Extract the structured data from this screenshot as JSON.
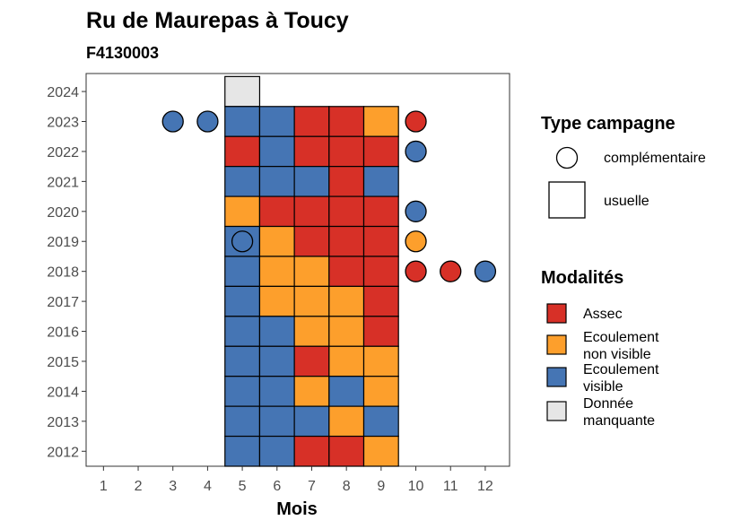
{
  "chart_data": {
    "type": "heatmap",
    "title": "Ru de Maurepas à Toucy",
    "subtitle": "F4130003",
    "xlabel": "Mois",
    "ylabel": "",
    "x_ticks": [
      "1",
      "2",
      "3",
      "4",
      "5",
      "6",
      "7",
      "8",
      "9",
      "10",
      "11",
      "12"
    ],
    "y_ticks": [
      "2012",
      "2013",
      "2014",
      "2015",
      "2016",
      "2017",
      "2018",
      "2019",
      "2020",
      "2021",
      "2022",
      "2023",
      "2024"
    ],
    "xlim": [
      0.5,
      12.7
    ],
    "ylim": [
      2011.5,
      2024.6
    ],
    "colors": {
      "Assec": "#d73027",
      "Ecoulement non visible": "#fd9f2c",
      "Ecoulement visible": "#4575b4",
      "Donnée manquante": "#e6e6e6"
    },
    "legend_type": {
      "title": "Type campagne",
      "items": [
        {
          "label": "complémentaire",
          "shape": "circle"
        },
        {
          "label": "usuelle",
          "shape": "square"
        }
      ]
    },
    "legend_modalites": {
      "title": "Modalités",
      "items": [
        {
          "key": "Assec",
          "lines": [
            "Assec"
          ]
        },
        {
          "key": "Ecoulement non visible",
          "lines": [
            "Ecoulement",
            "non visible"
          ]
        },
        {
          "key": "Ecoulement visible",
          "lines": [
            "Ecoulement",
            "visible"
          ]
        },
        {
          "key": "Donnée manquante",
          "lines": [
            "Donnée",
            "manquante"
          ]
        }
      ]
    },
    "usuelle": [
      {
        "year": 2024,
        "months": {
          "5": "Donnée manquante"
        }
      },
      {
        "year": 2023,
        "months": {
          "5": "Ecoulement visible",
          "6": "Ecoulement visible",
          "7": "Assec",
          "8": "Assec",
          "9": "Ecoulement non visible"
        }
      },
      {
        "year": 2022,
        "months": {
          "5": "Assec",
          "6": "Ecoulement visible",
          "7": "Assec",
          "8": "Assec",
          "9": "Assec"
        }
      },
      {
        "year": 2021,
        "months": {
          "5": "Ecoulement visible",
          "6": "Ecoulement visible",
          "7": "Ecoulement visible",
          "8": "Assec",
          "9": "Ecoulement visible"
        }
      },
      {
        "year": 2020,
        "months": {
          "5": "Ecoulement non visible",
          "6": "Assec",
          "7": "Assec",
          "8": "Assec",
          "9": "Assec"
        }
      },
      {
        "year": 2019,
        "months": {
          "5": "Ecoulement visible",
          "6": "Ecoulement non visible",
          "7": "Assec",
          "8": "Assec",
          "9": "Assec"
        }
      },
      {
        "year": 2018,
        "months": {
          "5": "Ecoulement visible",
          "6": "Ecoulement non visible",
          "7": "Ecoulement non visible",
          "8": "Assec",
          "9": "Assec"
        }
      },
      {
        "year": 2017,
        "months": {
          "5": "Ecoulement visible",
          "6": "Ecoulement non visible",
          "7": "Ecoulement non visible",
          "8": "Ecoulement non visible",
          "9": "Assec"
        }
      },
      {
        "year": 2016,
        "months": {
          "5": "Ecoulement visible",
          "6": "Ecoulement visible",
          "7": "Ecoulement non visible",
          "8": "Ecoulement non visible",
          "9": "Assec"
        }
      },
      {
        "year": 2015,
        "months": {
          "5": "Ecoulement visible",
          "6": "Ecoulement visible",
          "7": "Assec",
          "8": "Ecoulement non visible",
          "9": "Ecoulement non visible"
        }
      },
      {
        "year": 2014,
        "months": {
          "5": "Ecoulement visible",
          "6": "Ecoulement visible",
          "7": "Ecoulement non visible",
          "8": "Ecoulement visible",
          "9": "Ecoulement non visible"
        }
      },
      {
        "year": 2013,
        "months": {
          "5": "Ecoulement visible",
          "6": "Ecoulement visible",
          "7": "Ecoulement visible",
          "8": "Ecoulement non visible",
          "9": "Ecoulement visible"
        }
      },
      {
        "year": 2012,
        "months": {
          "5": "Ecoulement visible",
          "6": "Ecoulement visible",
          "7": "Assec",
          "8": "Assec",
          "9": "Ecoulement non visible"
        }
      }
    ],
    "complementaire": [
      {
        "year": 2023,
        "month": 3,
        "value": "Ecoulement visible"
      },
      {
        "year": 2023,
        "month": 4,
        "value": "Ecoulement visible"
      },
      {
        "year": 2023,
        "month": 10,
        "value": "Assec"
      },
      {
        "year": 2022,
        "month": 10,
        "value": "Ecoulement visible"
      },
      {
        "year": 2020,
        "month": 10,
        "value": "Ecoulement visible"
      },
      {
        "year": 2019,
        "month": 5,
        "value": "Ecoulement visible"
      },
      {
        "year": 2019,
        "month": 10,
        "value": "Ecoulement non visible"
      },
      {
        "year": 2018,
        "month": 10,
        "value": "Assec"
      },
      {
        "year": 2018,
        "month": 11,
        "value": "Assec"
      },
      {
        "year": 2018,
        "month": 12,
        "value": "Ecoulement visible"
      }
    ]
  }
}
